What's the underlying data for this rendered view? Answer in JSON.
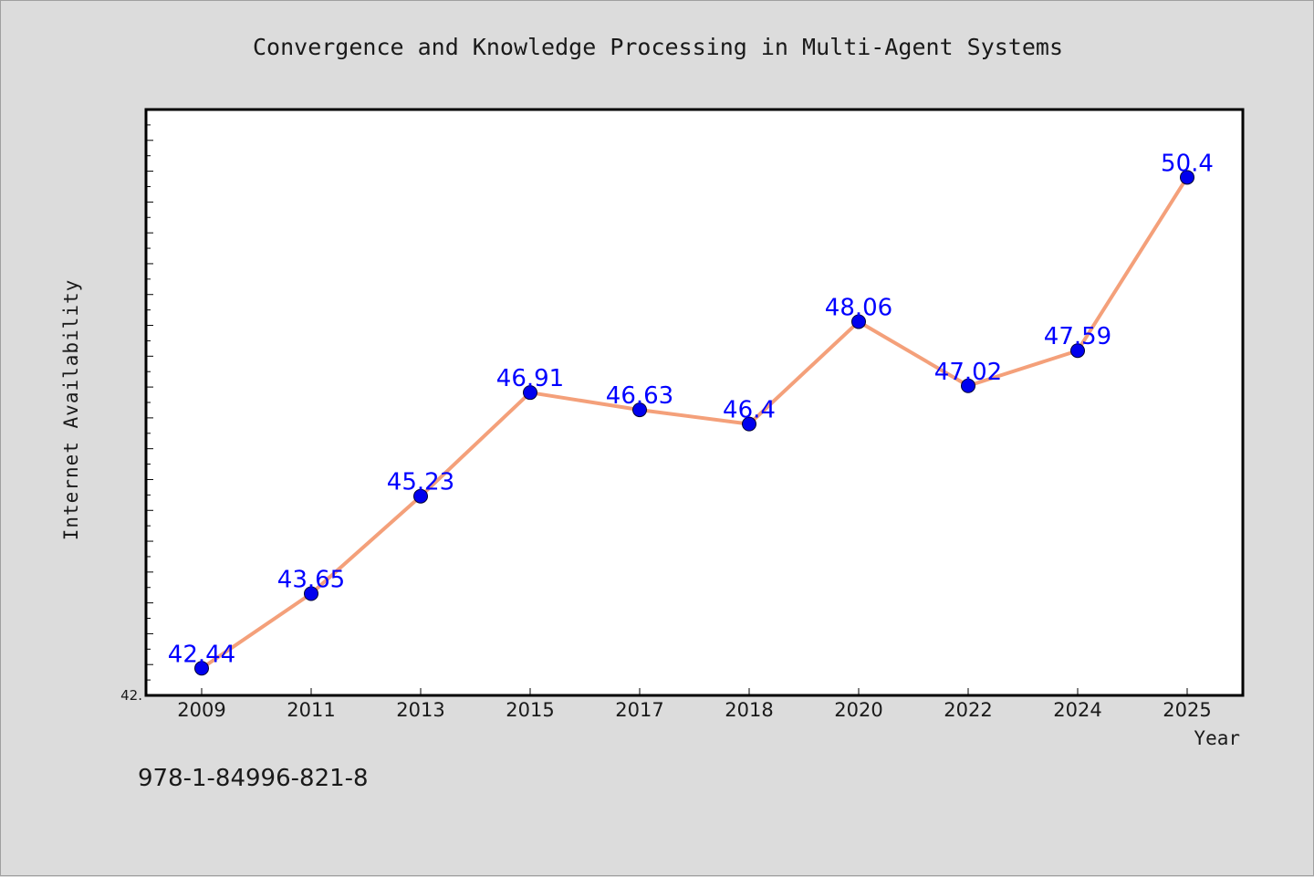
{
  "chart_data": {
    "type": "line",
    "title": "Convergence and Knowledge Processing in Multi-Agent Systems",
    "xlabel": "Year",
    "ylabel": "Internet Availability",
    "categories": [
      "2009",
      "2011",
      "2013",
      "2015",
      "2017",
      "2018",
      "2020",
      "2022",
      "2024",
      "2025"
    ],
    "series": [
      {
        "values": [
          42.44,
          43.65,
          45.23,
          46.91,
          46.63,
          46.4,
          48.06,
          47.02,
          47.59,
          50.4
        ],
        "data_labels": [
          "42.44",
          "43.65",
          "45.23",
          "46.91",
          "46.63",
          "46.4",
          "48.06",
          "47.02",
          "47.59",
          "50.4"
        ],
        "line_color": "#f4a07a",
        "marker_color": "#0000ee"
      }
    ],
    "ylim": [
      42.0,
      51.5
    ],
    "y_min_label": "42.",
    "grid": false,
    "legend": "none",
    "label_color": "#0000ff"
  },
  "footer": {
    "isbn": "978-1-84996-821-8"
  }
}
